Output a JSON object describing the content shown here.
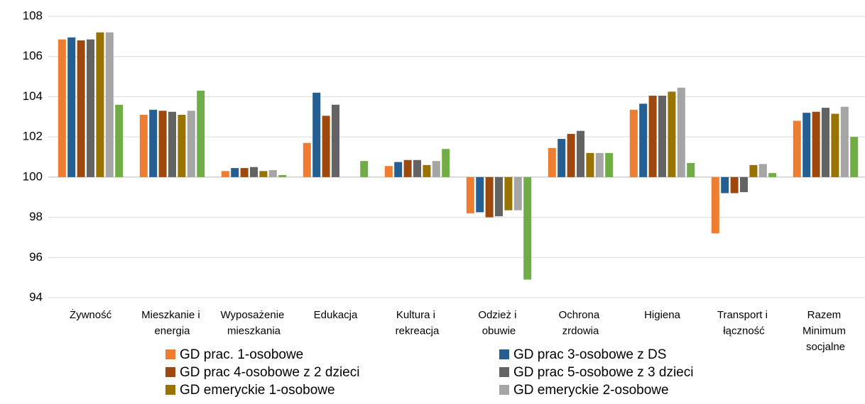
{
  "chart_data": {
    "type": "bar",
    "categories": [
      "Żywność",
      "Mieszkanie i energia",
      "Wyposażenie mieszkania",
      "Edukacja",
      "Kultura i rekreacja",
      "Odzież i obuwie",
      "Ochrona zrdowia",
      "Higiena",
      "Transport i łączność",
      "Razem Minimum socjalne"
    ],
    "series": [
      {
        "name": "GD prac. 1-osobowe",
        "color": "#ed7d31",
        "values": [
          106.85,
          103.1,
          100.3,
          101.7,
          100.55,
          98.2,
          101.45,
          103.35,
          97.2,
          102.8
        ]
      },
      {
        "name": "GD prac 3-osobowe z DS",
        "color": "#255e91",
        "values": [
          106.95,
          103.35,
          100.45,
          104.2,
          100.75,
          98.25,
          101.9,
          103.65,
          99.2,
          103.2
        ]
      },
      {
        "name": "GD prac 4-osobowe z 2 dzieci",
        "color": "#9e480e",
        "values": [
          106.8,
          103.3,
          100.45,
          103.05,
          100.85,
          98.0,
          102.15,
          104.05,
          99.2,
          103.25
        ]
      },
      {
        "name": "GD prac 5-osobowe z 3 dzieci",
        "color": "#636363",
        "values": [
          106.85,
          103.25,
          100.5,
          103.6,
          100.85,
          98.05,
          102.3,
          104.05,
          99.25,
          103.45
        ]
      },
      {
        "name": "GD emeryckie 1-osobowe",
        "color": "#997300",
        "values": [
          107.2,
          103.1,
          100.3,
          null,
          100.6,
          98.35,
          101.2,
          104.25,
          100.6,
          103.15
        ]
      },
      {
        "name": "GD emeryckie 2-osobowe",
        "color": "#a5a5a5",
        "values": [
          107.2,
          103.3,
          100.35,
          null,
          100.8,
          98.35,
          101.2,
          104.45,
          100.65,
          103.5
        ]
      },
      {
        "color": "#70ad47",
        "values": [
          103.6,
          104.3,
          100.1,
          100.8,
          101.4,
          94.9,
          101.2,
          100.7,
          100.2,
          102.0
        ]
      }
    ],
    "baseline": 100,
    "ylim": [
      94,
      108
    ],
    "yticks": [
      94,
      96,
      98,
      100,
      102,
      104,
      106,
      108
    ],
    "grid": true
  }
}
